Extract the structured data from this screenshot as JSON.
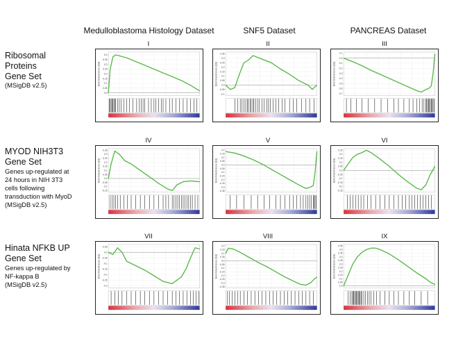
{
  "columns": [
    {
      "label": "Medulloblastoma Histology Dataset"
    },
    {
      "label": "SNF5 Dataset"
    },
    {
      "label": "PANCREAS Dataset"
    }
  ],
  "rows": [
    {
      "title": [
        "Ribosomal",
        "Proteins",
        "Gene Set"
      ],
      "desc": [
        "(MSigDB v2.5)"
      ]
    },
    {
      "title": [
        "MYOD NIH3T3",
        "Gene Set"
      ],
      "desc": [
        "Genes up-regulated at",
        "24 hours in NIH 3T3",
        "cells following",
        "transduction with MyoD",
        "(MSigDB v2.5)"
      ]
    },
    {
      "title": [
        "Hinata NFKB UP",
        "Gene Set"
      ],
      "desc": [
        "Genes up-regulated by",
        "NF-kappa B",
        "(MSigDB v2.5)"
      ]
    }
  ],
  "colors": {
    "curve": "#59b84a",
    "rank_high": "#d9323c",
    "rank_low": "#2f3a9a",
    "hit": "#111111"
  },
  "chart_data": [
    {
      "type": "line",
      "panel": "I",
      "ylabel": "Enrichment score (ES)",
      "yticks": [
        "0.4",
        "0.35",
        "0.3",
        "0.25",
        "0.2",
        "0.15",
        "0.1",
        "0.05",
        "0.0"
      ],
      "ylim": [
        -0.03,
        0.43
      ],
      "zero": 0.0,
      "x": [
        0,
        0.02,
        0.05,
        0.08,
        0.12,
        0.2,
        0.3,
        0.4,
        0.5,
        0.6,
        0.7,
        0.8,
        0.9,
        0.95,
        1.0
      ],
      "y": [
        0.0,
        0.25,
        0.38,
        0.4,
        0.39,
        0.37,
        0.33,
        0.29,
        0.25,
        0.21,
        0.17,
        0.13,
        0.08,
        0.05,
        0.02
      ],
      "hits": [
        0.01,
        0.02,
        0.03,
        0.04,
        0.05,
        0.06,
        0.07,
        0.08,
        0.1,
        0.12,
        0.14,
        0.17,
        0.2,
        0.23,
        0.27,
        0.31,
        0.34,
        0.36,
        0.38,
        0.4,
        0.44,
        0.47,
        0.5,
        0.52,
        0.55,
        0.58,
        0.6,
        0.63,
        0.67,
        0.7,
        0.74,
        0.78,
        0.82,
        0.86,
        0.9,
        0.94,
        0.97
      ]
    },
    {
      "type": "line",
      "panel": "II",
      "ylabel": "Enrichment score (ES)",
      "yticks": [
        "0.35",
        "0.3",
        "0.25",
        "0.2",
        "0.15",
        "0.1",
        "0.05",
        "0.0",
        "-0.05",
        "-0.1"
      ],
      "ylim": [
        -0.12,
        0.37
      ],
      "zero": 0.0,
      "x": [
        0,
        0.05,
        0.1,
        0.15,
        0.2,
        0.25,
        0.3,
        0.35,
        0.4,
        0.5,
        0.6,
        0.7,
        0.8,
        0.9,
        0.95,
        1.0
      ],
      "y": [
        0.0,
        -0.05,
        -0.03,
        0.12,
        0.25,
        0.28,
        0.33,
        0.31,
        0.29,
        0.25,
        0.18,
        0.12,
        0.05,
        0.0,
        -0.05,
        0.0
      ],
      "hits": [
        0.1,
        0.13,
        0.16,
        0.18,
        0.2,
        0.22,
        0.24,
        0.25,
        0.27,
        0.28,
        0.3,
        0.31,
        0.33,
        0.35,
        0.37,
        0.4,
        0.42,
        0.45,
        0.47,
        0.49,
        0.52,
        0.55,
        0.58,
        0.62,
        0.65,
        0.7,
        0.74,
        0.78,
        0.83,
        0.88,
        0.92,
        0.97
      ]
    },
    {
      "type": "line",
      "panel": "III",
      "ylabel": "Enrichment score (ES)",
      "yticks": [
        "0.1",
        "0.0",
        "-0.1",
        "-0.2",
        "-0.3",
        "-0.4",
        "-0.5",
        "-0.6",
        "-0.7"
      ],
      "ylim": [
        -0.74,
        0.12
      ],
      "zero": 0.0,
      "x": [
        0,
        0.1,
        0.2,
        0.3,
        0.4,
        0.5,
        0.6,
        0.7,
        0.8,
        0.85,
        0.9,
        0.93,
        0.96,
        0.98,
        1.0
      ],
      "y": [
        0.0,
        -0.07,
        -0.15,
        -0.24,
        -0.32,
        -0.4,
        -0.48,
        -0.56,
        -0.64,
        -0.67,
        -0.62,
        -0.6,
        -0.55,
        -0.3,
        0.08
      ],
      "hits": [
        0.03,
        0.08,
        0.14,
        0.2,
        0.27,
        0.34,
        0.41,
        0.48,
        0.55,
        0.6,
        0.66,
        0.72,
        0.76,
        0.8,
        0.83,
        0.86,
        0.88,
        0.9,
        0.91,
        0.92,
        0.93,
        0.94,
        0.95,
        0.96,
        0.97,
        0.98,
        0.99
      ]
    },
    {
      "type": "line",
      "panel": "IV",
      "ylabel": "Enrichment score (ES)",
      "yticks": [
        "0.35",
        "0.3",
        "0.25",
        "0.2",
        "0.15",
        "0.1",
        "0.05",
        "0.0",
        "-0.05",
        "-0.1",
        "-0.15"
      ],
      "ylim": [
        -0.17,
        0.37
      ],
      "zero": 0.0,
      "x": [
        0,
        0.03,
        0.07,
        0.12,
        0.18,
        0.25,
        0.35,
        0.45,
        0.55,
        0.65,
        0.7,
        0.75,
        0.82,
        0.9,
        1.0
      ],
      "y": [
        0.0,
        0.18,
        0.34,
        0.3,
        0.22,
        0.18,
        0.1,
        0.02,
        -0.06,
        -0.13,
        -0.15,
        -0.08,
        -0.04,
        -0.03,
        -0.04
      ],
      "hits": [
        0.02,
        0.04,
        0.06,
        0.08,
        0.1,
        0.13,
        0.17,
        0.21,
        0.25,
        0.3,
        0.35,
        0.4,
        0.45,
        0.5,
        0.55,
        0.6,
        0.63,
        0.66,
        0.7,
        0.72,
        0.74,
        0.76,
        0.78,
        0.8,
        0.82,
        0.84,
        0.86,
        0.88,
        0.9,
        0.92,
        0.95,
        0.98
      ]
    },
    {
      "type": "line",
      "panel": "V",
      "ylabel": "Enrichment score (ES)",
      "yticks": [
        "0.2",
        "0.15",
        "0.1",
        "0.05",
        "0.0",
        "-0.05",
        "-0.1",
        "-0.15",
        "-0.2",
        "-0.25",
        "-0.3",
        "-0.35"
      ],
      "ylim": [
        -0.37,
        0.22
      ],
      "zero": 0.0,
      "x": [
        0,
        0.1,
        0.2,
        0.3,
        0.4,
        0.5,
        0.6,
        0.7,
        0.8,
        0.88,
        0.93,
        0.96,
        0.98,
        1.0
      ],
      "y": [
        0.18,
        0.16,
        0.12,
        0.07,
        0.01,
        -0.06,
        -0.13,
        -0.2,
        -0.27,
        -0.32,
        -0.3,
        -0.28,
        -0.1,
        0.18
      ],
      "hits": [
        0.05,
        0.12,
        0.2,
        0.28,
        0.35,
        0.42,
        0.48,
        0.55,
        0.6,
        0.65,
        0.7,
        0.74,
        0.78,
        0.82,
        0.85,
        0.88,
        0.9,
        0.92,
        0.94,
        0.96,
        0.97,
        0.98,
        0.99
      ]
    },
    {
      "type": "line",
      "panel": "VI",
      "ylabel": "Enrichment score (ES)",
      "yticks": [
        "0.25",
        "0.2",
        "0.15",
        "0.1",
        "0.05",
        "0.0",
        "-0.05",
        "-0.1",
        "-0.15",
        "-0.2",
        "-0.25"
      ],
      "ylim": [
        -0.27,
        0.27
      ],
      "zero": 0.0,
      "x": [
        0,
        0.05,
        0.1,
        0.15,
        0.2,
        0.25,
        0.3,
        0.4,
        0.5,
        0.6,
        0.7,
        0.8,
        0.85,
        0.9,
        0.95,
        1.0
      ],
      "y": [
        0.0,
        0.08,
        0.16,
        0.2,
        0.22,
        0.25,
        0.22,
        0.14,
        0.05,
        -0.05,
        -0.14,
        -0.22,
        -0.24,
        -0.18,
        -0.05,
        0.05
      ],
      "hits": [
        0.04,
        0.07,
        0.1,
        0.13,
        0.16,
        0.19,
        0.22,
        0.26,
        0.3,
        0.35,
        0.4,
        0.45,
        0.5,
        0.55,
        0.6,
        0.64,
        0.68,
        0.72,
        0.75,
        0.78,
        0.81,
        0.84,
        0.87,
        0.9,
        0.93,
        0.96
      ]
    },
    {
      "type": "line",
      "panel": "VII",
      "ylabel": "Enrichment score (ES)",
      "yticks": [
        "0.05",
        "0.0",
        "-0.05",
        "-0.1",
        "-0.15",
        "-0.2",
        "-0.25",
        "-0.3"
      ],
      "ylim": [
        -0.32,
        0.07
      ],
      "zero": 0.0,
      "x": [
        0,
        0.05,
        0.1,
        0.15,
        0.2,
        0.3,
        0.4,
        0.5,
        0.6,
        0.7,
        0.8,
        0.85,
        0.9,
        0.95,
        1.0
      ],
      "y": [
        0.0,
        -0.02,
        0.04,
        0.0,
        -0.08,
        -0.12,
        -0.16,
        -0.21,
        -0.26,
        -0.28,
        -0.22,
        -0.15,
        -0.05,
        0.04,
        0.03
      ],
      "hits": [
        0.03,
        0.07,
        0.11,
        0.15,
        0.2,
        0.25,
        0.3,
        0.35,
        0.4,
        0.45,
        0.5,
        0.55,
        0.6,
        0.65,
        0.7,
        0.74,
        0.78,
        0.82,
        0.86,
        0.9,
        0.93,
        0.96,
        0.99
      ]
    },
    {
      "type": "line",
      "panel": "VIII",
      "ylabel": "Enrichment score (ES)",
      "yticks": [
        "0.2",
        "0.15",
        "0.1",
        "0.05",
        "0.0",
        "-0.05",
        "-0.1",
        "-0.15",
        "-0.2",
        "-0.25",
        "-0.3",
        "-0.35"
      ],
      "ylim": [
        -0.37,
        0.22
      ],
      "zero": 0.0,
      "x": [
        0,
        0.03,
        0.08,
        0.15,
        0.25,
        0.35,
        0.45,
        0.55,
        0.65,
        0.75,
        0.82,
        0.88,
        0.93,
        0.97,
        1.0
      ],
      "y": [
        0.1,
        0.17,
        0.16,
        0.12,
        0.05,
        -0.02,
        -0.08,
        -0.15,
        -0.22,
        -0.28,
        -0.32,
        -0.33,
        -0.3,
        -0.25,
        -0.22
      ],
      "hits": [
        0.02,
        0.04,
        0.07,
        0.1,
        0.13,
        0.16,
        0.2,
        0.24,
        0.28,
        0.32,
        0.36,
        0.4,
        0.44,
        0.48,
        0.52,
        0.56,
        0.6,
        0.64,
        0.68,
        0.72,
        0.76,
        0.8,
        0.84,
        0.88,
        0.92,
        0.96
      ]
    },
    {
      "type": "line",
      "panel": "IX",
      "ylabel": "Enrichment score (ES)",
      "yticks": [
        "0.55",
        "0.5",
        "0.45",
        "0.4",
        "0.35",
        "0.3",
        "0.25",
        "0.2",
        "0.15",
        "0.1",
        "0.05",
        "0.0"
      ],
      "ylim": [
        -0.03,
        0.57
      ],
      "zero": 0.0,
      "x": [
        0,
        0.05,
        0.1,
        0.15,
        0.2,
        0.25,
        0.3,
        0.35,
        0.4,
        0.5,
        0.6,
        0.7,
        0.8,
        0.9,
        0.95,
        1.0
      ],
      "y": [
        0.0,
        0.15,
        0.3,
        0.4,
        0.46,
        0.5,
        0.52,
        0.52,
        0.5,
        0.44,
        0.36,
        0.27,
        0.18,
        0.1,
        0.05,
        0.02
      ],
      "hits": [
        0.05,
        0.07,
        0.09,
        0.1,
        0.11,
        0.12,
        0.13,
        0.14,
        0.15,
        0.16,
        0.17,
        0.18,
        0.19,
        0.2,
        0.22,
        0.24,
        0.26,
        0.28,
        0.3,
        0.33,
        0.36,
        0.4,
        0.45,
        0.5,
        0.55,
        0.6,
        0.66,
        0.72,
        0.78,
        0.85,
        0.92
      ]
    }
  ]
}
